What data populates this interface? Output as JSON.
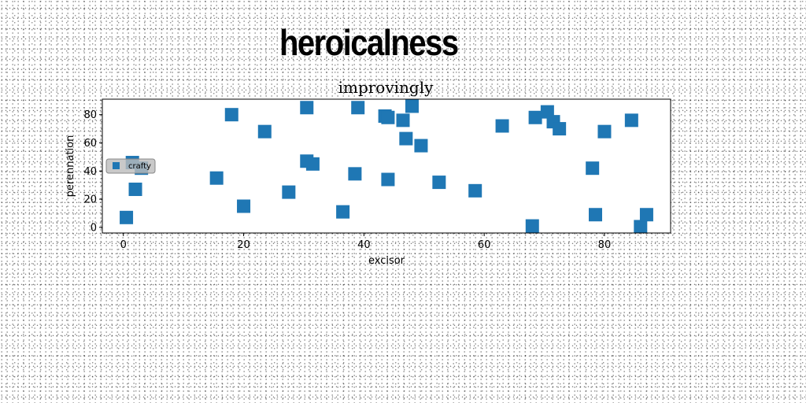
{
  "title": "heroicalness",
  "chart_data": {
    "type": "scatter",
    "title": "improvingly",
    "xlabel": "excisor",
    "ylabel": "perennation",
    "xlim": [
      -3.5,
      91
    ],
    "ylim": [
      -4,
      91
    ],
    "xticks": [
      0,
      20,
      40,
      60,
      80
    ],
    "yticks": [
      0,
      20,
      40,
      60,
      80
    ],
    "grid": false,
    "legend_position": "center-left",
    "marker": "square",
    "series": [
      {
        "name": "crafty",
        "color": "#1f77b4",
        "points": [
          {
            "x": 0.5,
            "y": 7
          },
          {
            "x": 1.5,
            "y": 46
          },
          {
            "x": 2,
            "y": 27
          },
          {
            "x": 3,
            "y": 42
          },
          {
            "x": 15.5,
            "y": 35
          },
          {
            "x": 18,
            "y": 80
          },
          {
            "x": 20,
            "y": 15
          },
          {
            "x": 23.5,
            "y": 68
          },
          {
            "x": 27.5,
            "y": 25
          },
          {
            "x": 30.5,
            "y": 85
          },
          {
            "x": 30.5,
            "y": 47
          },
          {
            "x": 31.5,
            "y": 45
          },
          {
            "x": 36.5,
            "y": 11
          },
          {
            "x": 38.5,
            "y": 38
          },
          {
            "x": 39,
            "y": 85
          },
          {
            "x": 43.5,
            "y": 79
          },
          {
            "x": 44,
            "y": 78
          },
          {
            "x": 44,
            "y": 34
          },
          {
            "x": 46.5,
            "y": 76
          },
          {
            "x": 47,
            "y": 63
          },
          {
            "x": 48,
            "y": 86
          },
          {
            "x": 49.5,
            "y": 58
          },
          {
            "x": 52.5,
            "y": 32
          },
          {
            "x": 58.5,
            "y": 26
          },
          {
            "x": 63,
            "y": 72
          },
          {
            "x": 68,
            "y": 1
          },
          {
            "x": 68.5,
            "y": 78
          },
          {
            "x": 70.5,
            "y": 82
          },
          {
            "x": 71.5,
            "y": 75
          },
          {
            "x": 72.5,
            "y": 70
          },
          {
            "x": 78,
            "y": 42
          },
          {
            "x": 78.5,
            "y": 9
          },
          {
            "x": 80,
            "y": 68
          },
          {
            "x": 84.5,
            "y": 76
          },
          {
            "x": 86,
            "y": 0.5
          },
          {
            "x": 87,
            "y": 9
          }
        ]
      }
    ]
  }
}
